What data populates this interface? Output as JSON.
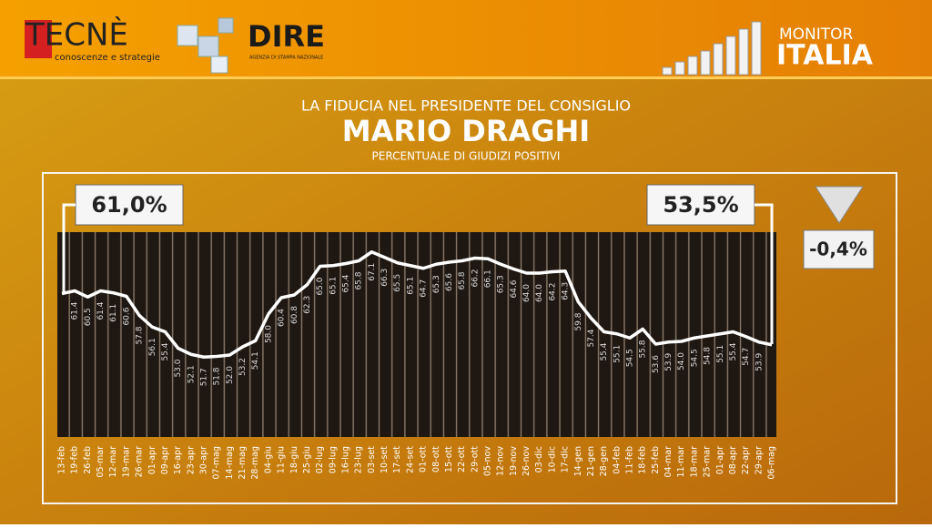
{
  "header": {
    "brand": "TECNÈ",
    "brand_tagline": "conoscenze e strategie",
    "partner": "DIRE",
    "partner_tagline": "AGENZIA DI STAMPA NAZIONALE",
    "program_top": "MONITOR",
    "program_bottom": "ITALIA"
  },
  "chart_data": {
    "type": "line",
    "kicker": "LA FIDUCIA NEL PRESIDENTE DEL CONSIGLIO",
    "title": "MARIO DRAGHI",
    "subtitle": "PERCENTUALE DI GIUDIZI POSITIVI",
    "categories": [
      "13-feb",
      "19-feb",
      "26-feb",
      "05-mar",
      "12-mar",
      "19-mar",
      "26-mar",
      "01-apr",
      "09-apr",
      "16-apr",
      "23-apr",
      "30-apr",
      "07-mag",
      "14-mag",
      "21-mag",
      "28-mag",
      "04-giu",
      "11-giu",
      "18-giu",
      "25-giu",
      "02-lug",
      "09-lug",
      "16-lug",
      "23-lug",
      "03-set",
      "10-set",
      "17-set",
      "24-set",
      "01-ott",
      "08-ott",
      "15-ott",
      "22-ott",
      "29-ott",
      "05-nov",
      "12-nov",
      "19-nov",
      "26-nov",
      "03-dic",
      "10-dic",
      "17-dic",
      "14-gen",
      "21-gen",
      "28-gen",
      "04-feb",
      "11-feb",
      "18-feb",
      "25-feb",
      "04-mar",
      "11-mar",
      "18-mar",
      "25-mar",
      "01-apr",
      "08-apr",
      "22-apr",
      "29-apr",
      "06-mag"
    ],
    "series": [
      {
        "name": "Fiducia",
        "color": "#ffffff",
        "values": [
          61.0,
          61.4,
          60.5,
          61.4,
          61.1,
          60.6,
          57.8,
          56.1,
          55.4,
          53.0,
          52.1,
          51.7,
          51.8,
          52.0,
          53.2,
          54.1,
          58.0,
          60.4,
          60.8,
          62.3,
          65.0,
          65.1,
          65.4,
          65.8,
          67.1,
          66.3,
          65.5,
          65.1,
          64.7,
          65.3,
          65.6,
          65.8,
          66.2,
          66.1,
          65.3,
          64.6,
          64.0,
          64.0,
          64.2,
          64.3,
          59.8,
          57.4,
          55.4,
          55.1,
          54.5,
          55.8,
          53.6,
          53.9,
          54.0,
          54.5,
          54.8,
          55.1,
          55.4,
          54.7,
          53.9,
          53.5
        ],
        "value_labels": [
          null,
          "61.4",
          "60.5",
          "61.4",
          "61.1",
          "60.6",
          "57.8",
          "56.1",
          "55.4",
          "53.0",
          "52.1",
          "51.7",
          "51.8",
          "52.0",
          "53.2",
          "54.1",
          "58.0",
          "60.4",
          "60.8",
          "62.3",
          "65.0",
          "65.1",
          "65.4",
          "65.8",
          "67.1",
          "66.3",
          "65.5",
          "65.1",
          "64.7",
          "65.3",
          "65.6",
          "65.8",
          "66.2",
          "66.1",
          "65.3",
          "64.6",
          "64.0",
          "64.0",
          "64.2",
          "64.3",
          "59.8",
          "57.4",
          "55.4",
          "55.1",
          "54.5",
          "55.8",
          "53.6",
          "53.9",
          "54.0",
          "54.5",
          "54.8",
          "55.1",
          "55.4",
          "54.7",
          "53.9",
          null
        ]
      }
    ],
    "start_label": "61,0%",
    "end_label": "53,5%",
    "change_label": "-0,4%",
    "ylim": [
      40,
      70
    ]
  }
}
